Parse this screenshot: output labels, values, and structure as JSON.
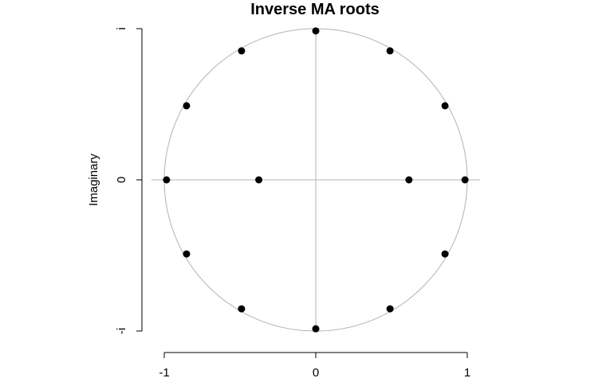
{
  "chart_data": {
    "type": "scatter",
    "title": "Inverse MA roots",
    "xlabel": "",
    "ylabel": "Imaginary",
    "xlim": [
      -1,
      1
    ],
    "ylim": [
      -1,
      1
    ],
    "grid": false,
    "x_ticks": [
      {
        "value": -1,
        "label": "-1"
      },
      {
        "value": 0,
        "label": "0"
      },
      {
        "value": 1,
        "label": "1"
      }
    ],
    "y_ticks": [
      {
        "value": -1,
        "label": "-i"
      },
      {
        "value": 0,
        "label": "0"
      },
      {
        "value": 1,
        "label": "i"
      }
    ],
    "unit_circle": true,
    "reference_lines": {
      "horizontal": 0,
      "vertical": 0
    },
    "points": [
      {
        "x": 0.0,
        "y": 0.985
      },
      {
        "x": 0.49,
        "y": 0.853
      },
      {
        "x": 0.853,
        "y": 0.49
      },
      {
        "x": 0.985,
        "y": 0.0
      },
      {
        "x": 0.853,
        "y": -0.49
      },
      {
        "x": 0.49,
        "y": -0.853
      },
      {
        "x": 0.0,
        "y": -0.985
      },
      {
        "x": -0.49,
        "y": -0.853
      },
      {
        "x": -0.853,
        "y": -0.49
      },
      {
        "x": -0.985,
        "y": 0.0
      },
      {
        "x": -0.853,
        "y": 0.49
      },
      {
        "x": -0.49,
        "y": 0.853
      },
      {
        "x": 0.615,
        "y": 0.0
      },
      {
        "x": -0.376,
        "y": 0.0
      }
    ],
    "colors": {
      "points": "#000000",
      "circle": "#b3b3b3",
      "reference_lines": "#b3b3b3",
      "axes": "#000000"
    }
  }
}
